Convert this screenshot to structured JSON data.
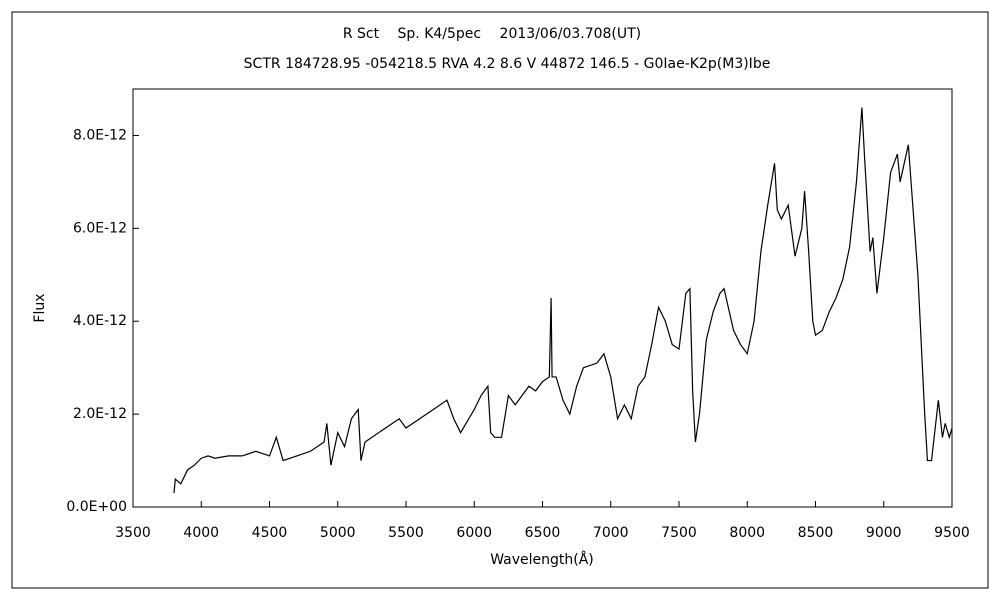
{
  "chart_data": {
    "type": "line",
    "title": "R Sct　 Sp. K4/5pec　 2013/06/03.708(UT)",
    "subtitle": "SCTR 184728.95 -054218.5 RVA 4.2 8.6 V 44872 146.5 - G0Iae-K2p(M3)Ibe",
    "x_label": "Wavelength(Å)",
    "y_label": "Flux",
    "color": "#000000",
    "x": [
      3800,
      3810,
      3850,
      3900,
      3950,
      4000,
      4050,
      4100,
      4200,
      4300,
      4400,
      4500,
      4550,
      4600,
      4700,
      4800,
      4900,
      4920,
      4950,
      5000,
      5050,
      5100,
      5150,
      5170,
      5200,
      5300,
      5400,
      5450,
      5500,
      5600,
      5700,
      5800,
      5850,
      5900,
      6000,
      6050,
      6100,
      6120,
      6150,
      6200,
      6250,
      6300,
      6400,
      6450,
      6500,
      6550,
      6563,
      6570,
      6600,
      6650,
      6700,
      6750,
      6800,
      6900,
      6950,
      6980,
      7000,
      7050,
      7100,
      7150,
      7200,
      7250,
      7300,
      7350,
      7400,
      7450,
      7500,
      7550,
      7580,
      7600,
      7620,
      7650,
      7700,
      7750,
      7800,
      7830,
      7900,
      7950,
      8000,
      8050,
      8100,
      8150,
      8200,
      8220,
      8250,
      8300,
      8350,
      8400,
      8420,
      8450,
      8480,
      8500,
      8550,
      8600,
      8650,
      8700,
      8750,
      8800,
      8840,
      8860,
      8900,
      8920,
      8950,
      9000,
      9050,
      9100,
      9120,
      9150,
      9180,
      9200,
      9250,
      9300,
      9320,
      9350,
      9400,
      9430,
      9450,
      9480,
      9500
    ],
    "values": [
      3e-13,
      6e-13,
      5e-13,
      8e-13,
      9e-13,
      1.05e-12,
      1.1e-12,
      1.05e-12,
      1.1e-12,
      1.1e-12,
      1.2e-12,
      1.1e-12,
      1.5e-12,
      1e-12,
      1.1e-12,
      1.2e-12,
      1.4e-12,
      1.8e-12,
      9e-13,
      1.6e-12,
      1.3e-12,
      1.9e-12,
      2.1e-12,
      1e-12,
      1.4e-12,
      1.6e-12,
      1.8e-12,
      1.9e-12,
      1.7e-12,
      1.9e-12,
      2.1e-12,
      2.3e-12,
      1.9e-12,
      1.6e-12,
      2.1e-12,
      2.4e-12,
      2.6e-12,
      1.6e-12,
      1.5e-12,
      1.5e-12,
      2.4e-12,
      2.2e-12,
      2.6e-12,
      2.5e-12,
      2.7e-12,
      2.8e-12,
      4.5e-12,
      2.8e-12,
      2.8e-12,
      2.3e-12,
      2e-12,
      2.6e-12,
      3e-12,
      3.1e-12,
      3.3e-12,
      3e-12,
      2.8e-12,
      1.9e-12,
      2.2e-12,
      1.9e-12,
      2.6e-12,
      2.8e-12,
      3.5e-12,
      4.3e-12,
      4e-12,
      3.5e-12,
      3.4e-12,
      4.6e-12,
      4.7e-12,
      2.5e-12,
      1.4e-12,
      2e-12,
      3.6e-12,
      4.2e-12,
      4.6e-12,
      4.7e-12,
      3.8e-12,
      3.5e-12,
      3.3e-12,
      4e-12,
      5.5e-12,
      6.5e-12,
      7.4e-12,
      6.4e-12,
      6.2e-12,
      6.5e-12,
      5.4e-12,
      6e-12,
      6.8e-12,
      5.5e-12,
      4e-12,
      3.7e-12,
      3.8e-12,
      4.2e-12,
      4.5e-12,
      4.9e-12,
      5.6e-12,
      7e-12,
      8.6e-12,
      7.5e-12,
      5.5e-12,
      5.8e-12,
      4.6e-12,
      5.8e-12,
      7.2e-12,
      7.6e-12,
      7e-12,
      7.4e-12,
      7.8e-12,
      7e-12,
      5e-12,
      2e-12,
      1e-12,
      1e-12,
      2.3e-12,
      1.5e-12,
      1.8e-12,
      1.5e-12,
      1.7e-12
    ],
    "xlim": [
      3500,
      9500
    ],
    "xticks": [
      3500,
      4000,
      4500,
      5000,
      5500,
      6000,
      6500,
      7000,
      7500,
      8000,
      8500,
      9000,
      9500
    ],
    "ylim": [
      0,
      9e-12
    ],
    "yticks": [
      {
        "value": 0,
        "label": "0.0E+00"
      },
      {
        "value": 2e-12,
        "label": "2.0E-12"
      },
      {
        "value": 4e-12,
        "label": "4.0E-12"
      },
      {
        "value": 6e-12,
        "label": "6.0E-12"
      },
      {
        "value": 8e-12,
        "label": "8.0E-12"
      }
    ]
  }
}
